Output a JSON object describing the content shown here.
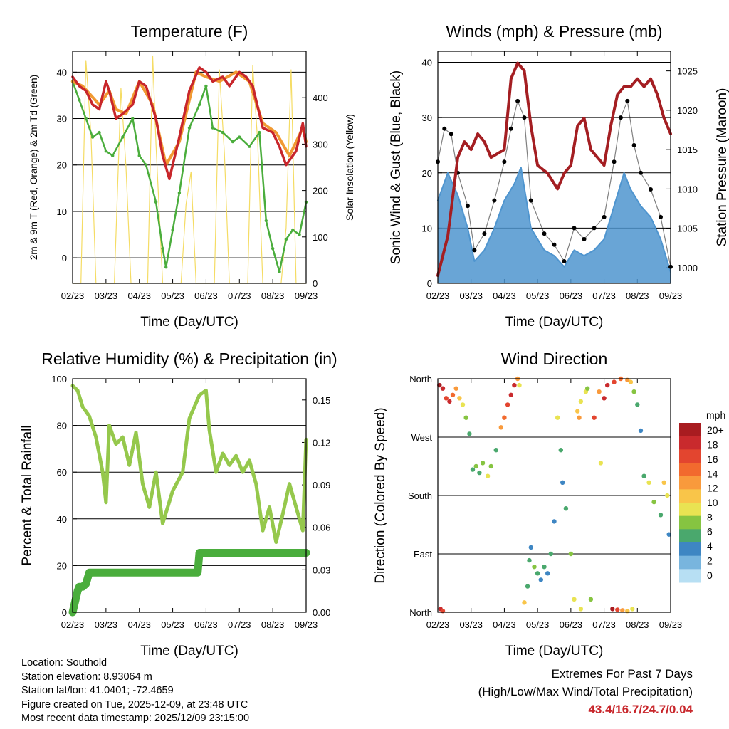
{
  "colors": {
    "temp_2m": "#c8262b",
    "temp_9m": "#f19a33",
    "dewpoint": "#4aad3c",
    "solar": "#f5dc64",
    "wind_sonic": "#4f95cf",
    "wind_gust": "#000000",
    "pressure": "#a41e22",
    "rh": "#95c84c",
    "precip": "#4aad3c",
    "extremes": "#c8262b"
  },
  "chart_data": [
    {
      "id": "temperature",
      "type": "line",
      "title": "Temperature (F)",
      "xlabel": "Time (Day/UTC)",
      "ylabel": "2m & 9m T (Red, Orange) & 2m Td (Green)",
      "y2label": "Solar Insolation (Yellow)",
      "x_ticks": [
        "02/23",
        "03/23",
        "04/23",
        "05/23",
        "06/23",
        "07/23",
        "08/23",
        "09/23"
      ],
      "xlim": [
        0,
        7
      ],
      "ylim": [
        -5.5,
        44.5
      ],
      "y_ticks": [
        0,
        10,
        20,
        30,
        40
      ],
      "y2lim": [
        0,
        500
      ],
      "y2_ticks": [
        0,
        100,
        200,
        300,
        400
      ],
      "series": [
        {
          "name": "2m T",
          "x": [
            0,
            0.2,
            0.4,
            0.6,
            0.8,
            1.0,
            1.1,
            1.3,
            1.5,
            1.8,
            2.0,
            2.2,
            2.5,
            2.7,
            2.9,
            3.2,
            3.5,
            3.8,
            4.0,
            4.2,
            4.5,
            4.7,
            5.0,
            5.2,
            5.4,
            5.7,
            6.0,
            6.2,
            6.4,
            6.7,
            6.9,
            7.0
          ],
          "values": [
            39,
            37,
            36,
            33,
            32,
            38,
            36,
            30,
            31,
            33,
            38,
            37,
            30,
            22,
            17,
            26,
            36,
            41,
            40,
            38,
            39,
            37,
            40,
            39,
            37,
            28,
            27,
            24,
            20,
            23,
            29,
            24
          ]
        },
        {
          "name": "9m T",
          "x": [
            0,
            0.3,
            0.8,
            1.1,
            1.3,
            1.6,
            2.0,
            2.4,
            2.8,
            3.2,
            3.7,
            4.0,
            4.4,
            4.9,
            5.3,
            5.7,
            6.1,
            6.5,
            6.9,
            7.0
          ],
          "values": [
            38,
            37,
            33,
            36,
            32,
            31,
            38,
            33,
            20,
            25,
            40,
            39,
            38,
            40,
            38,
            29,
            27,
            22,
            28,
            25
          ]
        },
        {
          "name": "2m Td",
          "x": [
            0,
            0.2,
            0.4,
            0.6,
            0.8,
            1.0,
            1.2,
            1.5,
            1.8,
            2.0,
            2.2,
            2.5,
            2.7,
            2.8,
            3.0,
            3.2,
            3.5,
            3.8,
            4.0,
            4.2,
            4.5,
            4.8,
            5.0,
            5.3,
            5.6,
            5.8,
            6.0,
            6.2,
            6.4,
            6.6,
            6.8,
            7.0
          ],
          "values": [
            38,
            34,
            30,
            26,
            27,
            23,
            22,
            26,
            30,
            22,
            20,
            12,
            2,
            -2,
            6,
            14,
            28,
            33,
            37,
            28,
            27,
            25,
            26,
            24,
            27,
            8,
            2,
            -3,
            4,
            6,
            5,
            12
          ]
        },
        {
          "name": "Solar",
          "axis": "y2",
          "x": [
            0,
            0.25,
            0.4,
            0.55,
            0.7,
            1.0,
            1.25,
            1.45,
            1.6,
            1.75,
            2.0,
            2.25,
            2.4,
            2.5,
            2.7,
            3.0,
            3.25,
            3.4,
            3.55,
            3.7,
            4.0,
            4.25,
            4.4,
            4.55,
            4.7,
            5.0,
            5.25,
            5.4,
            5.55,
            5.7,
            6.0,
            6.25,
            6.4,
            6.55,
            6.7,
            7.0
          ],
          "values": [
            0,
            0,
            480,
            320,
            0,
            0,
            0,
            420,
            250,
            0,
            0,
            0,
            490,
            300,
            0,
            0,
            0,
            170,
            240,
            0,
            0,
            0,
            460,
            280,
            0,
            0,
            0,
            470,
            300,
            0,
            0,
            0,
            120,
            460,
            0,
            0
          ]
        }
      ]
    },
    {
      "id": "winds",
      "type": "line",
      "title": "Winds (mph) & Pressure (mb)",
      "xlabel": "Time (Day/UTC)",
      "ylabel": "Sonic Wind & Gust (Blue, Black)",
      "y2label": "Station Pressure (Maroon)",
      "x_ticks": [
        "02/23",
        "03/23",
        "04/23",
        "05/23",
        "06/23",
        "07/23",
        "08/23",
        "09/23"
      ],
      "xlim": [
        0,
        7
      ],
      "ylim": [
        0,
        42
      ],
      "y_ticks": [
        0,
        10,
        20,
        30,
        40
      ],
      "y2lim": [
        998,
        1027.5
      ],
      "y2_ticks": [
        1000,
        1005,
        1010,
        1015,
        1020,
        1025
      ],
      "series": [
        {
          "name": "Sonic Wind",
          "x": [
            0,
            0.3,
            0.6,
            0.9,
            1.1,
            1.4,
            1.7,
            2.0,
            2.3,
            2.5,
            2.8,
            3.2,
            3.5,
            3.8,
            4.1,
            4.4,
            4.7,
            5.0,
            5.3,
            5.6,
            5.8,
            6.1,
            6.4,
            6.7,
            7.0
          ],
          "values": [
            15,
            20,
            16,
            10,
            4,
            6,
            10,
            15,
            18,
            21,
            10,
            6,
            5,
            3,
            6,
            5,
            6,
            8,
            14,
            20,
            17,
            14,
            12,
            8,
            2
          ]
        },
        {
          "name": "Gust",
          "x": [
            0,
            0.2,
            0.4,
            0.6,
            0.9,
            1.1,
            1.4,
            1.7,
            2.0,
            2.2,
            2.4,
            2.6,
            2.8,
            3.2,
            3.5,
            3.8,
            4.1,
            4.4,
            4.7,
            5.0,
            5.3,
            5.5,
            5.7,
            5.9,
            6.1,
            6.4,
            6.7,
            7.0
          ],
          "values": [
            22,
            28,
            27,
            20,
            14,
            6,
            9,
            15,
            22,
            28,
            33,
            30,
            15,
            9,
            7,
            4,
            10,
            8,
            10,
            12,
            22,
            30,
            33,
            25,
            20,
            17,
            12,
            3
          ]
        },
        {
          "name": "Pressure",
          "axis": "y2",
          "x": [
            0,
            0.3,
            0.6,
            0.8,
            1.0,
            1.2,
            1.4,
            1.6,
            2.0,
            2.2,
            2.4,
            2.6,
            2.8,
            3.0,
            3.3,
            3.6,
            3.8,
            4.0,
            4.2,
            4.4,
            4.6,
            4.8,
            5.0,
            5.2,
            5.4,
            5.6,
            5.8,
            6.0,
            6.2,
            6.4,
            6.6,
            6.8,
            7.0
          ],
          "values": [
            999,
            1004,
            1014,
            1016,
            1015,
            1017,
            1016,
            1014,
            1015,
            1024,
            1026,
            1025,
            1018,
            1013,
            1012,
            1010,
            1012,
            1013,
            1018,
            1019,
            1015,
            1014,
            1013,
            1018,
            1022,
            1023,
            1023,
            1024,
            1023,
            1024,
            1022,
            1019,
            1017
          ]
        }
      ]
    },
    {
      "id": "humidity",
      "type": "line",
      "title": "Relative Humidity (%) & Precipitation (in)",
      "xlabel": "Time (Day/UTC)",
      "ylabel": "Percent & Total Rainfall",
      "x_ticks": [
        "02/23",
        "03/23",
        "04/23",
        "05/23",
        "06/23",
        "07/23",
        "08/23",
        "09/23"
      ],
      "xlim": [
        0,
        7
      ],
      "ylim": [
        0,
        100
      ],
      "y_ticks": [
        0,
        20,
        40,
        60,
        80,
        100
      ],
      "y2lim": [
        0,
        0.165
      ],
      "y2_ticks": [
        "0.00",
        "0.03",
        "0.06",
        "0.09",
        "0.12",
        "0.15"
      ],
      "series": [
        {
          "name": "RH",
          "x": [
            0,
            0.15,
            0.3,
            0.5,
            0.7,
            0.9,
            1.0,
            1.1,
            1.3,
            1.5,
            1.7,
            1.9,
            2.1,
            2.3,
            2.5,
            2.7,
            3.0,
            3.3,
            3.5,
            3.8,
            4.0,
            4.1,
            4.3,
            4.5,
            4.7,
            4.9,
            5.1,
            5.3,
            5.5,
            5.7,
            5.9,
            6.1,
            6.3,
            6.5,
            6.7,
            6.9,
            7.0
          ],
          "values": [
            97,
            95,
            88,
            84,
            75,
            60,
            47,
            80,
            72,
            75,
            63,
            77,
            55,
            45,
            60,
            38,
            52,
            60,
            83,
            93,
            95,
            78,
            60,
            68,
            63,
            67,
            60,
            65,
            55,
            35,
            45,
            30,
            42,
            55,
            45,
            35,
            74
          ]
        },
        {
          "name": "Precip",
          "axis": "y2",
          "x": [
            0,
            0.05,
            0.1,
            0.15,
            0.2,
            0.3,
            0.4,
            0.5,
            0.6,
            3.75,
            3.8,
            7.0
          ],
          "values": [
            0.0,
            0.005,
            0.01,
            0.015,
            0.018,
            0.018,
            0.02,
            0.028,
            0.028,
            0.028,
            0.042,
            0.042
          ]
        }
      ]
    },
    {
      "id": "wind_direction",
      "type": "scatter",
      "title": "Wind Direction",
      "xlabel": "Time (Day/UTC)",
      "ylabel": "Direction (Colored By Speed)",
      "x_ticks": [
        "02/23",
        "03/23",
        "04/23",
        "05/23",
        "06/23",
        "07/23",
        "08/23",
        "09/23"
      ],
      "xlim": [
        0,
        7
      ],
      "ylim": [
        0,
        360
      ],
      "y_ticks": [
        {
          "v": 0,
          "label": "North"
        },
        {
          "v": 90,
          "label": "East"
        },
        {
          "v": 180,
          "label": "South"
        },
        {
          "v": 270,
          "label": "West"
        },
        {
          "v": 360,
          "label": "North"
        }
      ],
      "colorbar": {
        "title": "mph",
        "labels": [
          "20+",
          "18",
          "16",
          "14",
          "12",
          "10",
          "8",
          "6",
          "4",
          "2",
          "0"
        ],
        "colors": [
          "#a81c20",
          "#c92a2d",
          "#e3452f",
          "#f26a2e",
          "#f99a3c",
          "#f9c549",
          "#e9e352",
          "#86c441",
          "#4aa86d",
          "#3e86c3",
          "#78b5de",
          "#b7dff3"
        ]
      },
      "points": [
        {
          "x": 0.05,
          "d": 350,
          "s": 20
        },
        {
          "x": 0.15,
          "d": 345,
          "s": 18
        },
        {
          "x": 0.25,
          "d": 330,
          "s": 16
        },
        {
          "x": 0.35,
          "d": 325,
          "s": 18
        },
        {
          "x": 0.45,
          "d": 335,
          "s": 14
        },
        {
          "x": 0.55,
          "d": 345,
          "s": 12
        },
        {
          "x": 0.65,
          "d": 330,
          "s": 10
        },
        {
          "x": 0.75,
          "d": 320,
          "s": 8
        },
        {
          "x": 0.85,
          "d": 300,
          "s": 6
        },
        {
          "x": 0.95,
          "d": 275,
          "s": 4
        },
        {
          "x": 1.05,
          "d": 220,
          "s": 4
        },
        {
          "x": 1.15,
          "d": 225,
          "s": 6
        },
        {
          "x": 1.25,
          "d": 215,
          "s": 4
        },
        {
          "x": 1.35,
          "d": 230,
          "s": 6
        },
        {
          "x": 1.5,
          "d": 210,
          "s": 8
        },
        {
          "x": 1.6,
          "d": 225,
          "s": 6
        },
        {
          "x": 1.75,
          "d": 250,
          "s": 4
        },
        {
          "x": 1.9,
          "d": 285,
          "s": 12
        },
        {
          "x": 2.0,
          "d": 300,
          "s": 14
        },
        {
          "x": 2.1,
          "d": 320,
          "s": 16
        },
        {
          "x": 2.2,
          "d": 335,
          "s": 18
        },
        {
          "x": 2.3,
          "d": 350,
          "s": 18
        },
        {
          "x": 2.4,
          "d": 360,
          "s": 12
        },
        {
          "x": 2.45,
          "d": 350,
          "s": 8
        },
        {
          "x": 2.6,
          "d": 15,
          "s": 10
        },
        {
          "x": 2.7,
          "d": 40,
          "s": 4
        },
        {
          "x": 2.75,
          "d": 80,
          "s": 4
        },
        {
          "x": 2.8,
          "d": 100,
          "s": 2
        },
        {
          "x": 2.9,
          "d": 70,
          "s": 6
        },
        {
          "x": 3.0,
          "d": 60,
          "s": 4
        },
        {
          "x": 3.1,
          "d": 50,
          "s": 2
        },
        {
          "x": 3.2,
          "d": 70,
          "s": 4
        },
        {
          "x": 3.3,
          "d": 60,
          "s": 2
        },
        {
          "x": 3.4,
          "d": 90,
          "s": 4
        },
        {
          "x": 3.5,
          "d": 140,
          "s": 2
        },
        {
          "x": 3.6,
          "d": 300,
          "s": 8
        },
        {
          "x": 3.7,
          "d": 250,
          "s": 4
        },
        {
          "x": 3.75,
          "d": 200,
          "s": 2
        },
        {
          "x": 3.85,
          "d": 160,
          "s": 4
        },
        {
          "x": 4.0,
          "d": 90,
          "s": 6
        },
        {
          "x": 4.1,
          "d": 20,
          "s": 8
        },
        {
          "x": 4.2,
          "d": 310,
          "s": 10
        },
        {
          "x": 4.25,
          "d": 300,
          "s": 12
        },
        {
          "x": 4.3,
          "d": 325,
          "s": 8
        },
        {
          "x": 4.45,
          "d": 340,
          "s": 8
        },
        {
          "x": 4.5,
          "d": 345,
          "s": 6
        },
        {
          "x": 4.7,
          "d": 300,
          "s": 16
        },
        {
          "x": 4.85,
          "d": 340,
          "s": 12
        },
        {
          "x": 4.9,
          "d": 230,
          "s": 8
        },
        {
          "x": 5.0,
          "d": 330,
          "s": 18
        },
        {
          "x": 5.1,
          "d": 350,
          "s": 18
        },
        {
          "x": 5.3,
          "d": 355,
          "s": 16
        },
        {
          "x": 5.5,
          "d": 360,
          "s": 14
        },
        {
          "x": 5.7,
          "d": 358,
          "s": 12
        },
        {
          "x": 5.8,
          "d": 355,
          "s": 10
        },
        {
          "x": 5.9,
          "d": 340,
          "s": 6
        },
        {
          "x": 6.0,
          "d": 320,
          "s": 4
        },
        {
          "x": 6.1,
          "d": 280,
          "s": 2
        },
        {
          "x": 6.2,
          "d": 210,
          "s": 4
        },
        {
          "x": 6.35,
          "d": 200,
          "s": 8
        },
        {
          "x": 6.5,
          "d": 170,
          "s": 6
        },
        {
          "x": 6.7,
          "d": 150,
          "s": 4
        },
        {
          "x": 6.8,
          "d": 200,
          "s": 10
        },
        {
          "x": 6.9,
          "d": 180,
          "s": 8
        },
        {
          "x": 6.95,
          "d": 120,
          "s": 2
        },
        {
          "x": 5.25,
          "d": 5,
          "s": 20
        },
        {
          "x": 5.4,
          "d": 4,
          "s": 16
        },
        {
          "x": 5.55,
          "d": 3,
          "s": 12
        },
        {
          "x": 5.7,
          "d": 2,
          "s": 10
        },
        {
          "x": 5.85,
          "d": 5,
          "s": 8
        },
        {
          "x": 0.08,
          "d": 5,
          "s": 18
        },
        {
          "x": 0.15,
          "d": 2,
          "s": 16
        },
        {
          "x": 4.3,
          "d": 5,
          "s": 8
        },
        {
          "x": 4.6,
          "d": 20,
          "s": 6
        }
      ]
    }
  ],
  "info": {
    "location": "Location: Southold",
    "elevation": "Station elevation: 8.93064 m",
    "latlon": "Station lat/lon: 41.0401; -72.4659",
    "created": "Figure created on Tue, 2025-12-09, at 23:48 UTC",
    "timestamp": "Most recent data timestamp: 2025/12/09 23:15:00"
  },
  "extremes": {
    "line1": "Extremes For Past 7 Days",
    "line2": "(High/Low/Max Wind/Total Precipitation)",
    "values": "43.4/16.7/24.7/0.04"
  }
}
